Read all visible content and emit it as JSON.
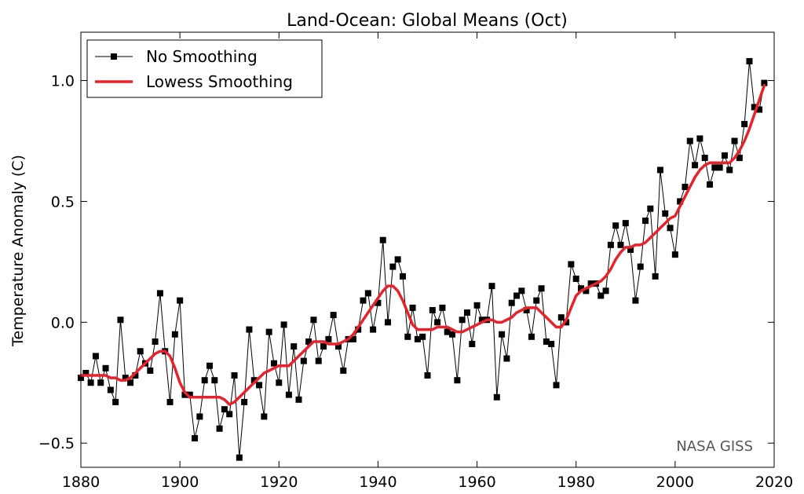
{
  "chart_data": {
    "type": "line",
    "title": "Land-Ocean: Global Means (Oct)",
    "xlabel": "",
    "ylabel": "Temperature Anomaly (C)",
    "xlim": [
      1880,
      2020
    ],
    "ylim": [
      -0.6,
      1.2
    ],
    "xticks": [
      1880,
      1900,
      1920,
      1940,
      1960,
      1980,
      2000,
      2020
    ],
    "yticks": [
      -0.5,
      0.0,
      0.5,
      1.0
    ],
    "xtick_labels": [
      "1880",
      "1900",
      "1920",
      "1940",
      "1960",
      "1980",
      "2000",
      "2020"
    ],
    "ytick_labels": [
      "−0.5",
      "0.0",
      "0.5",
      "1.0"
    ],
    "grid": false,
    "legend_position": "top-left",
    "annotation": "NASA GISS",
    "x": [
      1880,
      1881,
      1882,
      1883,
      1884,
      1885,
      1886,
      1887,
      1888,
      1889,
      1890,
      1891,
      1892,
      1893,
      1894,
      1895,
      1896,
      1897,
      1898,
      1899,
      1900,
      1901,
      1902,
      1903,
      1904,
      1905,
      1906,
      1907,
      1908,
      1909,
      1910,
      1911,
      1912,
      1913,
      1914,
      1915,
      1916,
      1917,
      1918,
      1919,
      1920,
      1921,
      1922,
      1923,
      1924,
      1925,
      1926,
      1927,
      1928,
      1929,
      1930,
      1931,
      1932,
      1933,
      1934,
      1935,
      1936,
      1937,
      1938,
      1939,
      1940,
      1941,
      1942,
      1943,
      1944,
      1945,
      1946,
      1947,
      1948,
      1949,
      1950,
      1951,
      1952,
      1953,
      1954,
      1955,
      1956,
      1957,
      1958,
      1959,
      1960,
      1961,
      1962,
      1963,
      1964,
      1965,
      1966,
      1967,
      1968,
      1969,
      1970,
      1971,
      1972,
      1973,
      1974,
      1975,
      1976,
      1977,
      1978,
      1979,
      1980,
      1981,
      1982,
      1983,
      1984,
      1985,
      1986,
      1987,
      1988,
      1989,
      1990,
      1991,
      1992,
      1993,
      1994,
      1995,
      1996,
      1997,
      1998,
      1999,
      2000,
      2001,
      2002,
      2003,
      2004,
      2005,
      2006,
      2007,
      2008,
      2009,
      2010,
      2011,
      2012,
      2013,
      2014,
      2015,
      2016,
      2017,
      2018
    ],
    "series": [
      {
        "name": "No Smoothing",
        "color": "#000000",
        "marker": "square",
        "values": [
          -0.23,
          -0.21,
          -0.25,
          -0.14,
          -0.25,
          -0.19,
          -0.28,
          -0.33,
          0.01,
          -0.23,
          -0.25,
          -0.22,
          -0.12,
          -0.17,
          -0.2,
          -0.08,
          0.12,
          -0.12,
          -0.33,
          -0.05,
          0.09,
          -0.3,
          -0.3,
          -0.48,
          -0.39,
          -0.24,
          -0.18,
          -0.24,
          -0.44,
          -0.36,
          -0.38,
          -0.22,
          -0.56,
          -0.33,
          -0.03,
          -0.24,
          -0.26,
          -0.39,
          -0.04,
          -0.17,
          -0.25,
          -0.01,
          -0.3,
          -0.1,
          -0.32,
          -0.16,
          -0.08,
          0.01,
          -0.16,
          -0.1,
          -0.07,
          0.03,
          -0.1,
          -0.2,
          -0.07,
          -0.07,
          -0.03,
          0.09,
          0.12,
          -0.03,
          0.08,
          0.34,
          0.0,
          0.23,
          0.26,
          0.19,
          -0.06,
          0.06,
          -0.07,
          -0.06,
          -0.22,
          0.05,
          0.0,
          0.06,
          -0.04,
          -0.05,
          -0.24,
          0.01,
          0.04,
          -0.09,
          0.07,
          0.01,
          0.01,
          0.15,
          -0.31,
          -0.05,
          -0.15,
          0.08,
          0.11,
          0.13,
          0.05,
          -0.06,
          0.09,
          0.14,
          -0.08,
          -0.09,
          -0.26,
          0.02,
          0.0,
          0.24,
          0.18,
          0.14,
          0.13,
          0.16,
          0.16,
          0.11,
          0.13,
          0.32,
          0.4,
          0.32,
          0.41,
          0.3,
          0.09,
          0.23,
          0.42,
          0.47,
          0.19,
          0.63,
          0.45,
          0.39,
          0.28,
          0.5,
          0.56,
          0.75,
          0.65,
          0.76,
          0.68,
          0.57,
          0.64,
          0.64,
          0.69,
          0.63,
          0.75,
          0.68,
          0.82,
          1.08,
          0.89,
          0.88,
          0.99
        ]
      },
      {
        "name": "Lowess Smoothing",
        "color": "#e8212b",
        "values": [
          -0.22,
          -0.22,
          -0.22,
          -0.22,
          -0.22,
          -0.22,
          -0.23,
          -0.23,
          -0.24,
          -0.24,
          -0.23,
          -0.21,
          -0.19,
          -0.17,
          -0.15,
          -0.13,
          -0.12,
          -0.12,
          -0.14,
          -0.19,
          -0.25,
          -0.29,
          -0.31,
          -0.31,
          -0.31,
          -0.31,
          -0.31,
          -0.31,
          -0.31,
          -0.32,
          -0.34,
          -0.33,
          -0.31,
          -0.29,
          -0.27,
          -0.25,
          -0.23,
          -0.21,
          -0.2,
          -0.19,
          -0.18,
          -0.18,
          -0.18,
          -0.16,
          -0.14,
          -0.12,
          -0.1,
          -0.08,
          -0.08,
          -0.08,
          -0.09,
          -0.09,
          -0.09,
          -0.08,
          -0.07,
          -0.05,
          -0.02,
          0.01,
          0.04,
          0.07,
          0.1,
          0.13,
          0.15,
          0.15,
          0.13,
          0.09,
          0.04,
          -0.01,
          -0.03,
          -0.03,
          -0.03,
          -0.03,
          -0.02,
          -0.02,
          -0.02,
          -0.03,
          -0.04,
          -0.04,
          -0.03,
          -0.02,
          -0.01,
          0.0,
          0.01,
          0.01,
          0.0,
          0.0,
          0.01,
          0.02,
          0.04,
          0.05,
          0.06,
          0.06,
          0.06,
          0.04,
          0.02,
          0.0,
          -0.02,
          -0.02,
          0.01,
          0.06,
          0.11,
          0.13,
          0.14,
          0.15,
          0.16,
          0.17,
          0.19,
          0.22,
          0.26,
          0.29,
          0.31,
          0.31,
          0.32,
          0.32,
          0.33,
          0.35,
          0.37,
          0.39,
          0.41,
          0.43,
          0.44,
          0.48,
          0.52,
          0.56,
          0.6,
          0.63,
          0.65,
          0.66,
          0.66,
          0.66,
          0.66,
          0.66,
          0.68,
          0.71,
          0.75,
          0.8,
          0.86,
          0.92,
          0.98
        ]
      }
    ]
  }
}
